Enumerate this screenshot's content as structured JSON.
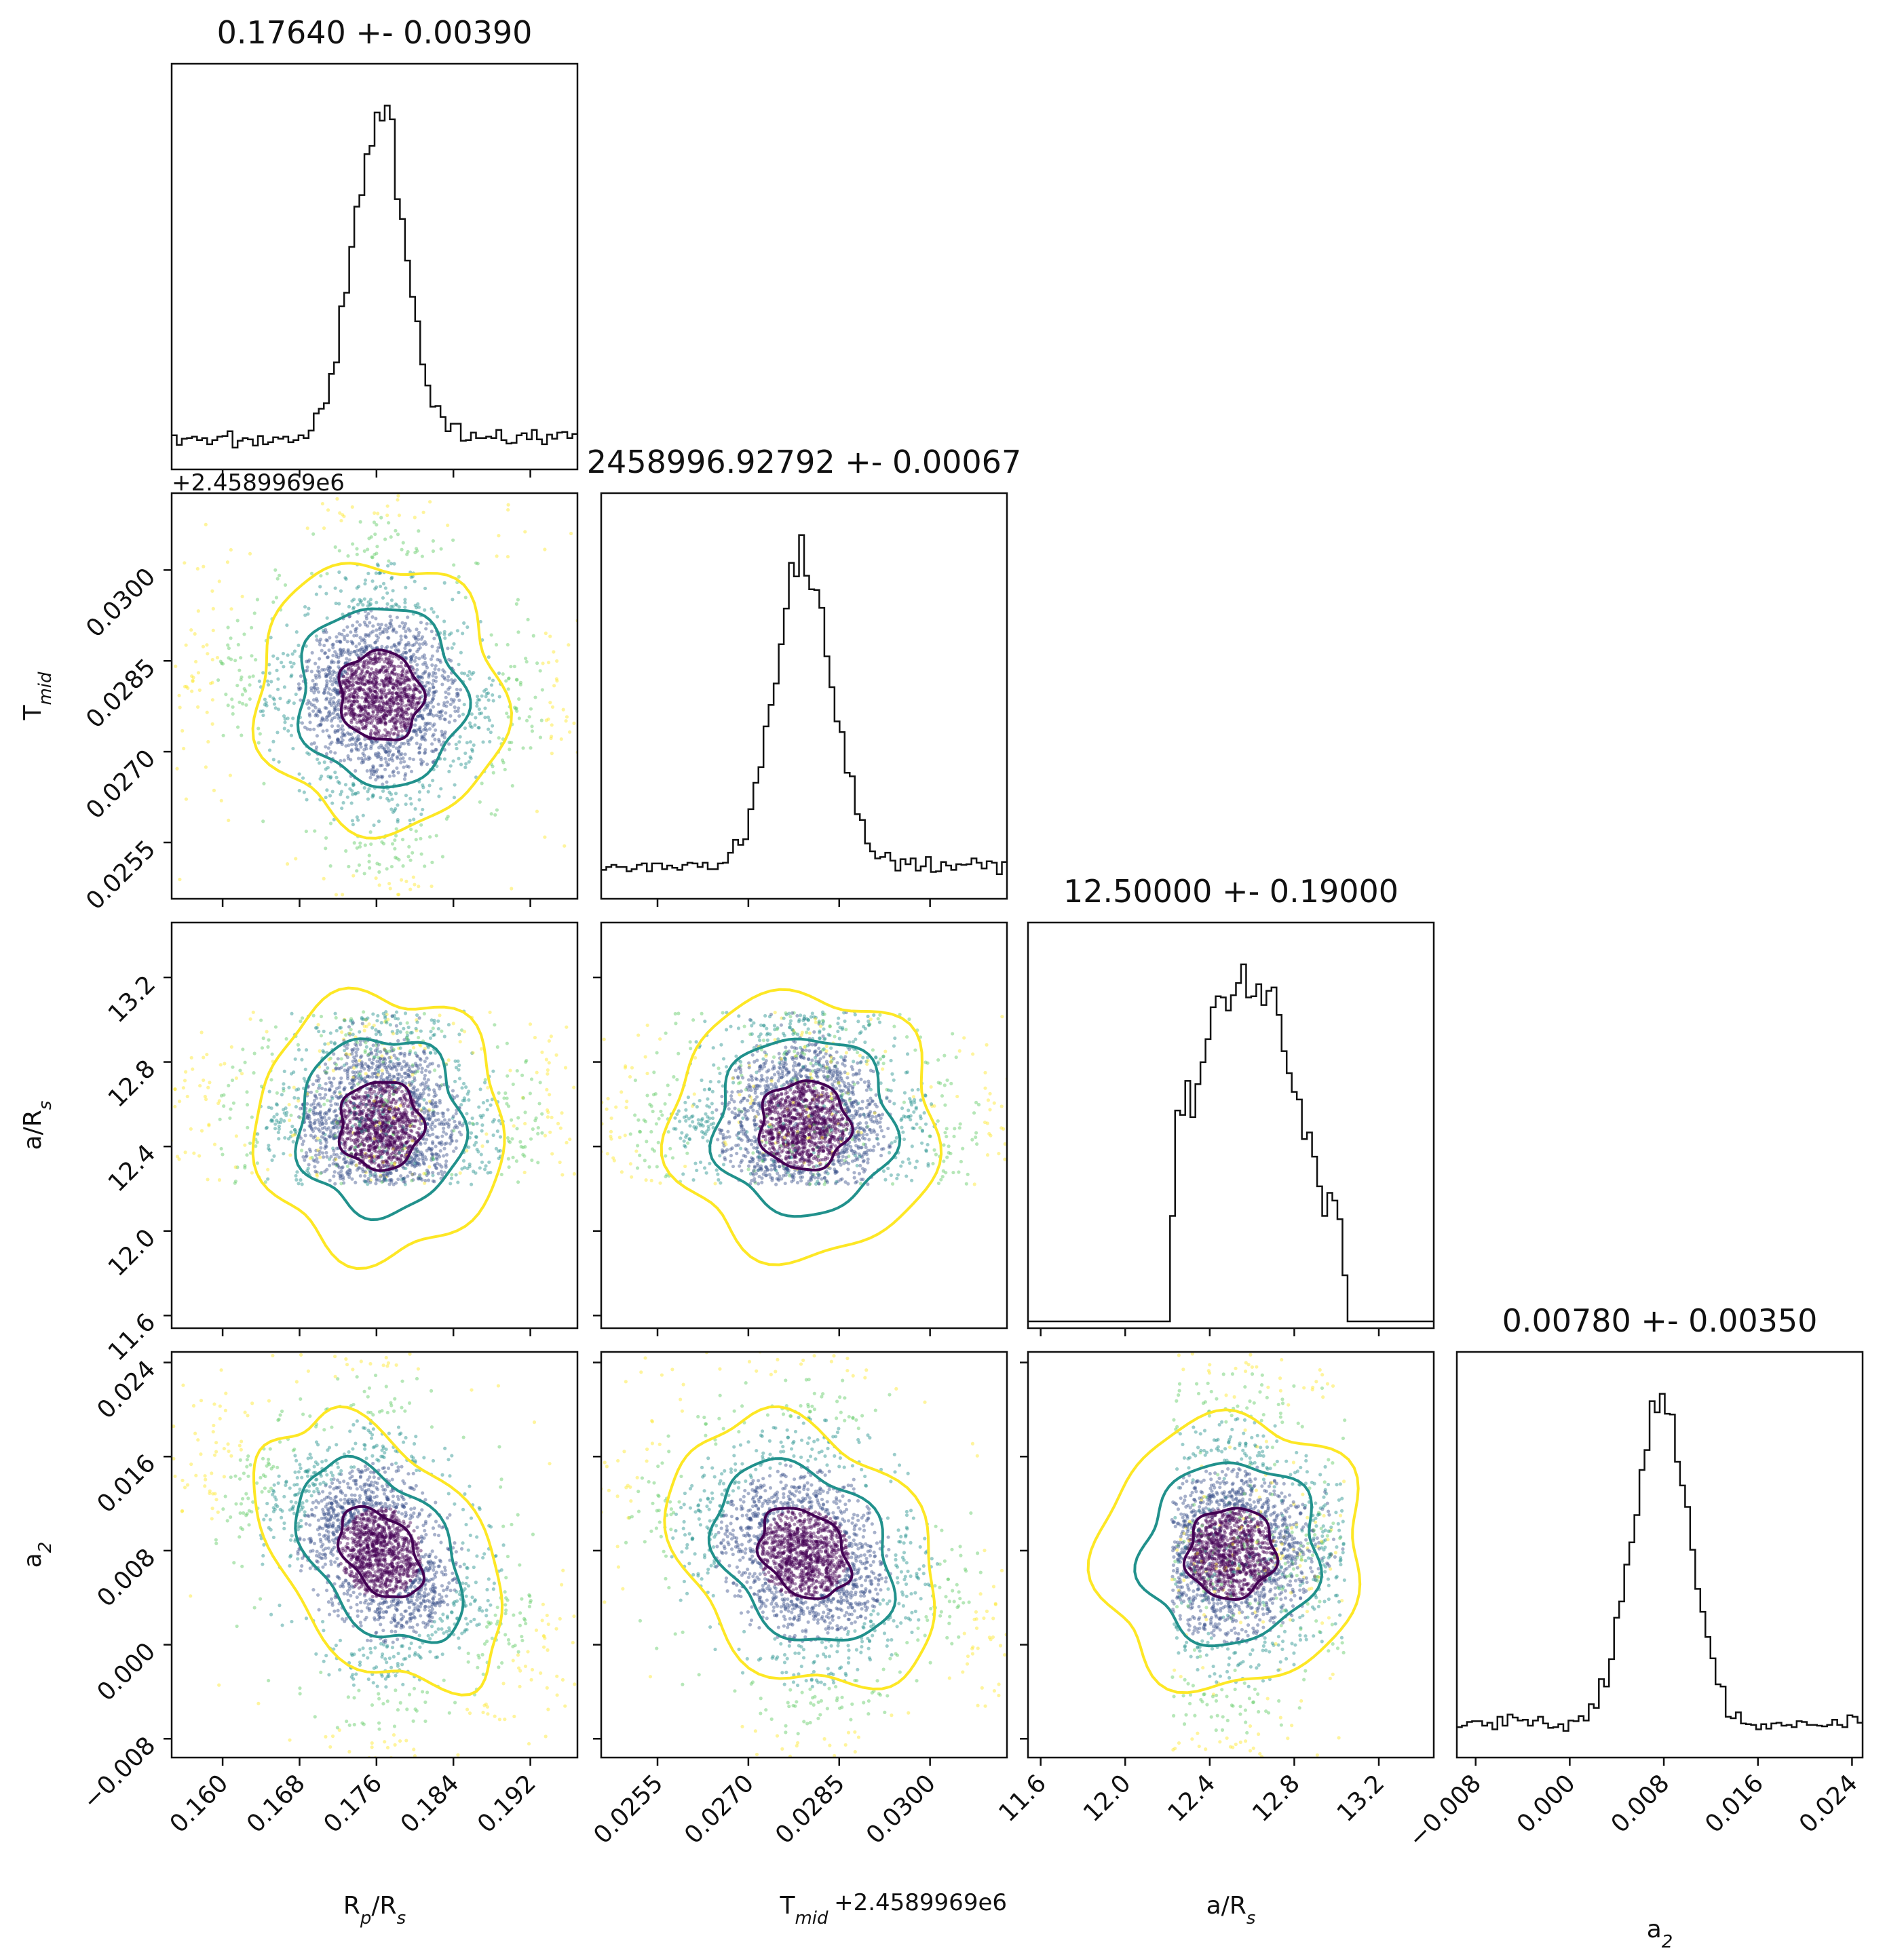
{
  "chart_data": {
    "type": "corner",
    "parameters": [
      {
        "name": "Rp/Rs",
        "label_main": "R",
        "label_sub": "p",
        "label_suffix": "/R",
        "label_suffix_sub": "s",
        "range": [
          0.1547,
          0.1969
        ],
        "ticks": [
          0.16,
          0.168,
          0.176,
          0.184,
          0.192
        ],
        "tick_labels": [
          "0.160",
          "0.168",
          "0.176",
          "0.184",
          "0.192"
        ],
        "title": "0.17640 +- 0.00390",
        "offset_text": "",
        "mean": 0.1764,
        "sigma": 0.0039
      },
      {
        "name": "Tmid",
        "label_main": "T",
        "label_sub": "mid",
        "label_suffix": "",
        "label_suffix_sub": "",
        "range": [
          0.02457,
          0.03127
        ],
        "ticks": [
          0.0255,
          0.027,
          0.0285,
          0.03
        ],
        "tick_labels": [
          "0.0255",
          "0.0270",
          "0.0285",
          "0.0300"
        ],
        "title": "2458996.92792 +- 0.00067",
        "offset_text": "+2.4589969e6",
        "mean": 0.02792,
        "sigma": 0.00067
      },
      {
        "name": "a/Rs",
        "label_main": "a/R",
        "label_sub": "",
        "label_suffix": "",
        "label_suffix_sub": "s",
        "range": [
          11.54,
          13.46
        ],
        "ticks": [
          11.6,
          12.0,
          12.4,
          12.8,
          13.2
        ],
        "tick_labels": [
          "11.6",
          "12.0",
          "12.4",
          "12.8",
          "13.2"
        ],
        "title": "12.50000 +- 0.19000",
        "offset_text": "",
        "mean": 12.5,
        "sigma": 0.19,
        "prior_bounds": [
          12.22,
          13.04
        ]
      },
      {
        "name": "a2",
        "label_main": "a",
        "label_sub": "2",
        "label_suffix": "",
        "label_suffix_sub": "",
        "range": [
          -0.0096,
          0.0249
        ],
        "ticks": [
          -0.008,
          0.0,
          0.008,
          0.016,
          0.024
        ],
        "tick_labels": [
          "−0.008",
          "0.000",
          "0.008",
          "0.016",
          "0.024"
        ],
        "title": "0.00780 +- 0.00350",
        "offset_text": "",
        "mean": 0.0078,
        "sigma": 0.0035
      }
    ],
    "correlations": {
      "0-1": -0.05,
      "0-2": 0.0,
      "0-3": -0.45,
      "1-2": 0.0,
      "1-3": -0.3,
      "2-3": 0.05
    },
    "contour_levels_sigma": [
      1,
      2,
      3
    ],
    "colors": {
      "histogram": "#111111",
      "contour_1sigma": "#440154",
      "contour_2sigma": "#21918c",
      "contour_3sigma": "#fde725",
      "points_palette": [
        "#440154",
        "#3b528b",
        "#21918c",
        "#5ec962",
        "#fde725"
      ],
      "axes": "#111111"
    }
  }
}
